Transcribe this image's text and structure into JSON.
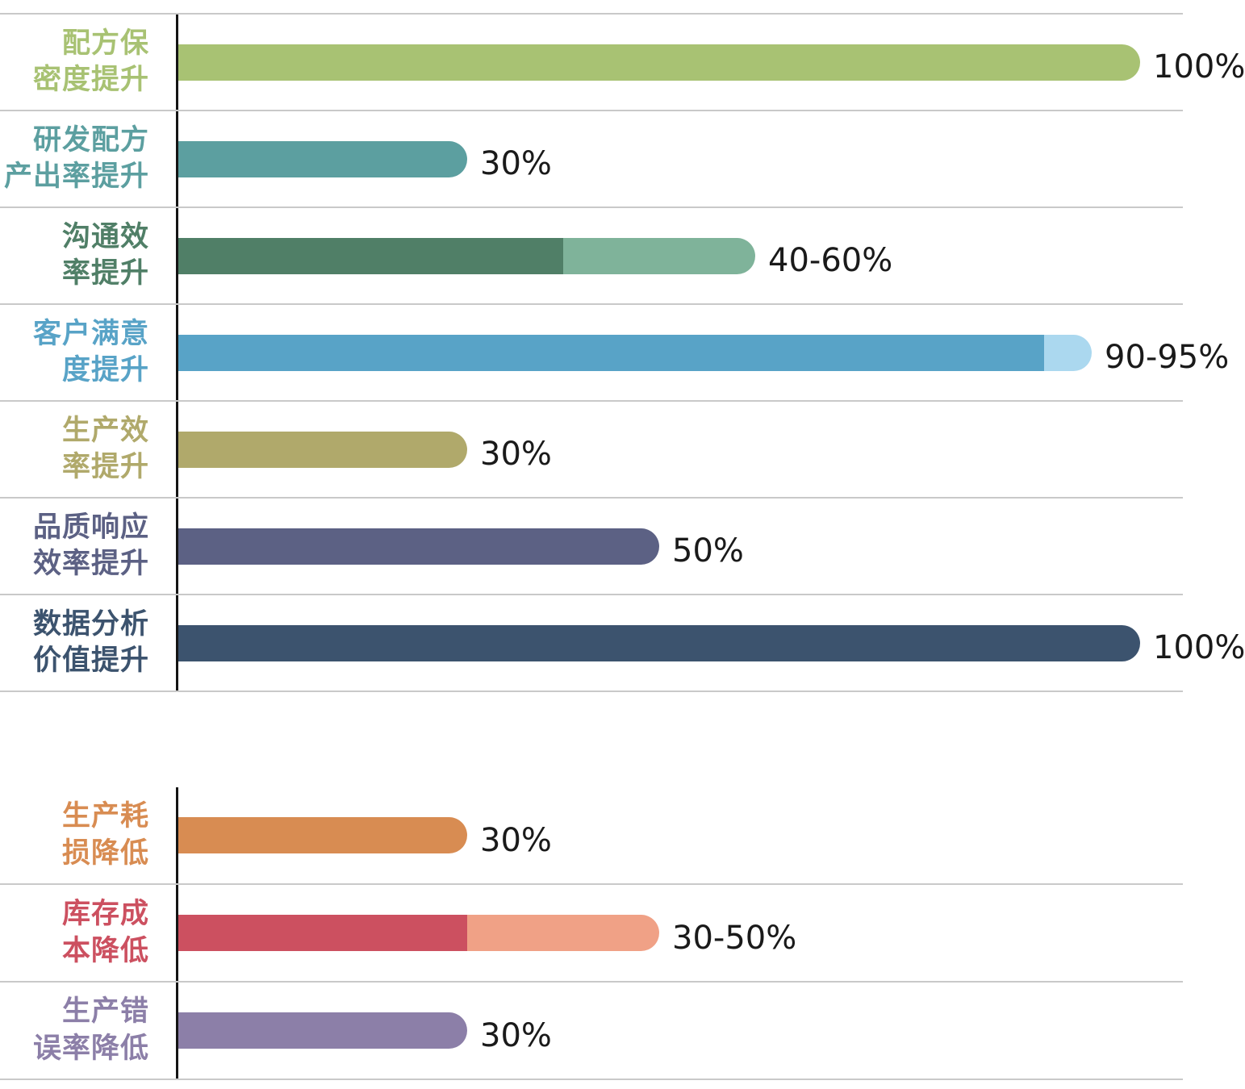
{
  "chart_data": {
    "type": "bar",
    "orientation": "horizontal",
    "unit": "%",
    "axis_range": [
      0,
      100
    ],
    "grid": "row-dividers-only",
    "value_labels_position": "end-of-bar",
    "colors": {
      "axis": "#141414",
      "divider": "#C9C9C9",
      "value_text": "#1A1A1A",
      "background": "#FFFFFF"
    },
    "groups": [
      {
        "name": "improvement-metrics",
        "rows": [
          {
            "category": "配方保密度提升",
            "label_lines": [
              "配方保",
              "密度提升"
            ],
            "value": 100,
            "value_label": "100%",
            "color": "#A8C273"
          },
          {
            "category": "研发配方产出率提升",
            "label_lines": [
              "研发配方",
              "产出率提升"
            ],
            "value": 30,
            "value_label": "30%",
            "color": "#5C9FA0"
          },
          {
            "category": "沟通效率提升",
            "label_lines": [
              "沟通效",
              "率提升"
            ],
            "value_min": 40,
            "value_max": 60,
            "value_label": "40-60%",
            "color": "#507F67",
            "color_light": "#7FB39A"
          },
          {
            "category": "客户满意度提升",
            "label_lines": [
              "客户满意",
              "度提升"
            ],
            "value_min": 90,
            "value_max": 95,
            "value_label": "90-95%",
            "color": "#58A3C7",
            "color_light": "#ABD8EF"
          },
          {
            "category": "生产效率提升",
            "label_lines": [
              "生产效",
              "率提升"
            ],
            "value": 30,
            "value_label": "30%",
            "color": "#B0A96B"
          },
          {
            "category": "品质响应效率提升",
            "label_lines": [
              "品质响应",
              "效率提升"
            ],
            "value": 50,
            "value_label": "50%",
            "color": "#5C6184"
          },
          {
            "category": "数据分析价值提升",
            "label_lines": [
              "数据分析",
              "价值提升"
            ],
            "value": 100,
            "value_label": "100%",
            "color": "#3C536E"
          }
        ]
      },
      {
        "name": "reduction-metrics",
        "rows": [
          {
            "category": "生产耗损降低",
            "label_lines": [
              "生产耗",
              "损降低"
            ],
            "value": 30,
            "value_label": "30%",
            "color": "#D88C52"
          },
          {
            "category": "库存成本降低",
            "label_lines": [
              "库存成",
              "本降低"
            ],
            "value_min": 30,
            "value_max": 50,
            "value_label": "30-50%",
            "color": "#CC5060",
            "color_light": "#F0A186"
          },
          {
            "category": "生产错误率降低",
            "label_lines": [
              "生产错",
              "误率降低"
            ],
            "value": 30,
            "value_label": "30%",
            "color": "#8C7FA8"
          }
        ]
      }
    ]
  }
}
